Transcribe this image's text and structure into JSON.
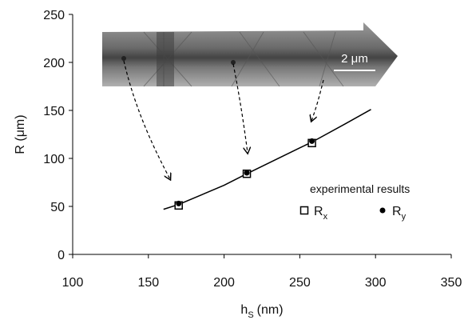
{
  "chart_data": {
    "type": "scatter",
    "x_label": {
      "main": "h",
      "subscript": "S",
      "unit": "(nm)"
    },
    "y_label": "R (μm)",
    "xlim": [
      100,
      350
    ],
    "xticks": [
      100,
      150,
      200,
      250,
      300,
      350
    ],
    "ylim": [
      0,
      250
    ],
    "yticks": [
      0,
      50,
      100,
      150,
      200,
      250
    ],
    "legend_title": "experimental results",
    "inset_scale_label": "2 μm",
    "fit": {
      "color": "#000000",
      "x": [
        160,
        170,
        200,
        215,
        250,
        258,
        280,
        297
      ],
      "values": [
        47,
        52,
        72,
        84,
        111,
        117,
        136,
        151
      ]
    },
    "series": [
      {
        "name": "R",
        "subscript": "x",
        "marker": "square",
        "color": "#000000",
        "x": [
          170,
          215,
          258
        ],
        "values": [
          51,
          84,
          116
        ]
      },
      {
        "name": "R",
        "subscript": "y",
        "marker": "circle",
        "color": "#000000",
        "x": [
          170,
          215,
          258
        ],
        "values": [
          53,
          85,
          118
        ]
      }
    ]
  }
}
